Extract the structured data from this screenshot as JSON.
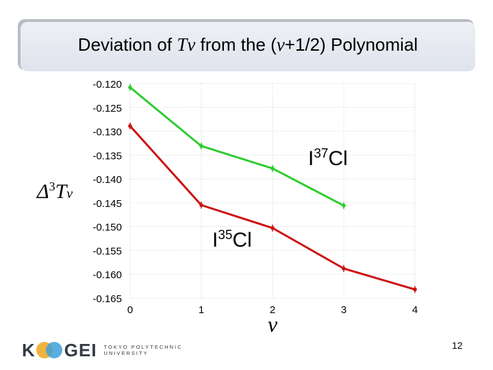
{
  "title": {
    "part1": "Deviation of ",
    "tv": "Tv",
    "part2": " from the (",
    "v": "v",
    "part3": "+1/2) Polynomial"
  },
  "chart_data": {
    "type": "line",
    "title": "Deviation of Tv from the (v+1/2) Polynomial",
    "xlabel": "v",
    "ylabel": "Δ3Tv",
    "xlim": [
      0,
      4
    ],
    "ylim": [
      -0.165,
      -0.12
    ],
    "grid": true,
    "y_ticks": [
      -0.12,
      -0.125,
      -0.13,
      -0.135,
      -0.14,
      -0.145,
      -0.15,
      -0.155,
      -0.16,
      -0.165
    ],
    "x_ticks": [
      0,
      1,
      2,
      3,
      4
    ],
    "y_tick_labels": [
      "-0.120",
      "-0.125",
      "-0.130",
      "-0.135",
      "-0.140",
      "-0.145",
      "-0.150",
      "-0.155",
      "-0.160",
      "-0.165"
    ],
    "x_tick_labels": [
      "0",
      "1",
      "2",
      "3",
      "4"
    ],
    "series": [
      {
        "name": "I37Cl",
        "color": "#2ecc2e",
        "x": [
          0,
          1,
          2,
          3
        ],
        "y": [
          -0.1208,
          -0.1331,
          -0.1378,
          -0.1456
        ]
      },
      {
        "name": "I35Cl",
        "color": "#cc1111",
        "x": [
          0,
          1,
          2,
          3,
          4
        ],
        "y": [
          -0.1289,
          -0.1455,
          -0.1503,
          -0.1588,
          -0.1632
        ]
      }
    ]
  },
  "axis_labels": {
    "y_delta": "Δ",
    "y_sup": "3",
    "y_T": "T",
    "y_sub": "v",
    "x": "v"
  },
  "labels": {
    "i37_prefix": "I",
    "i37_mass": "37",
    "i37_suffix": "Cl",
    "i35_prefix": "I",
    "i35_mass": "35",
    "i35_suffix": "Cl"
  },
  "logo": {
    "k": "K",
    "gei": "GEI",
    "line1": "TOKYO POLYTECHNIC",
    "line2": "UNIVERSITY"
  },
  "page_number": "12"
}
